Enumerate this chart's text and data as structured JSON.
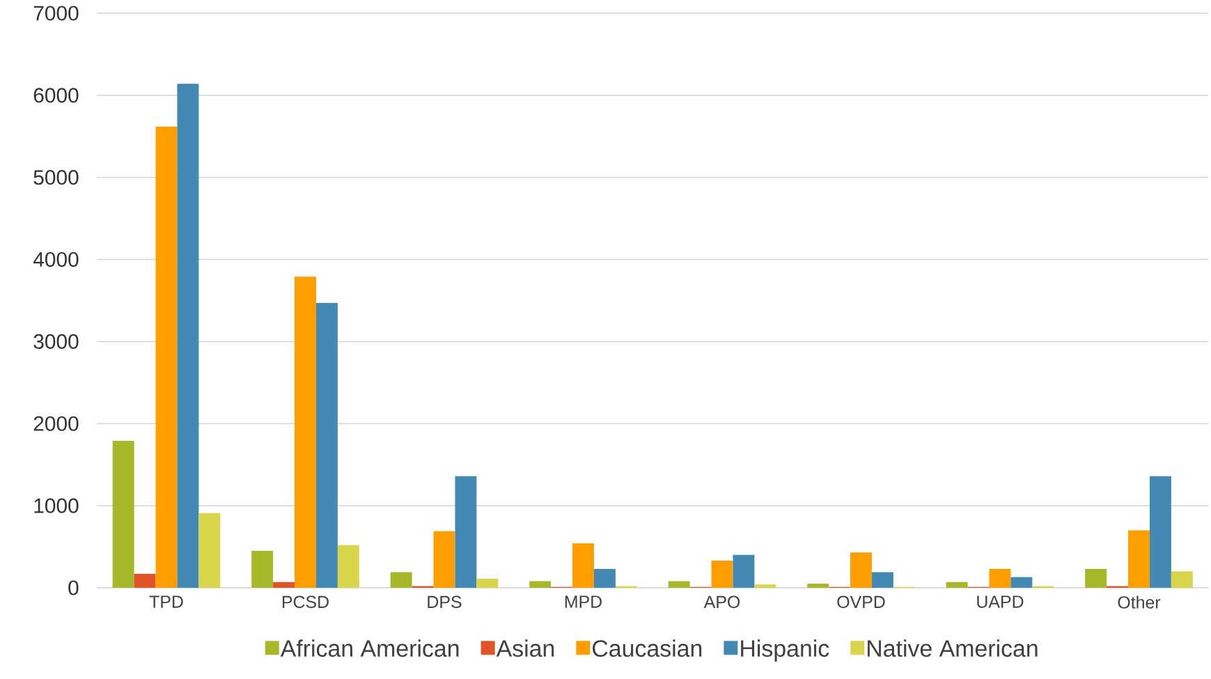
{
  "chart_data": {
    "type": "bar",
    "categories": [
      "TPD",
      "PCSD",
      "DPS",
      "MPD",
      "APO",
      "OVPD",
      "UAPD",
      "Other"
    ],
    "series": [
      {
        "name": "African American",
        "color": "#a6b727",
        "values": [
          1790,
          450,
          190,
          80,
          80,
          50,
          70,
          230
        ]
      },
      {
        "name": "Asian",
        "color": "#e05528",
        "values": [
          170,
          70,
          20,
          10,
          10,
          10,
          10,
          20
        ]
      },
      {
        "name": "Caucasian",
        "color": "#ff9e00",
        "values": [
          5620,
          3790,
          690,
          540,
          330,
          430,
          230,
          700
        ]
      },
      {
        "name": "Hispanic",
        "color": "#4289b3",
        "values": [
          6140,
          3470,
          1360,
          230,
          400,
          190,
          130,
          1360
        ]
      },
      {
        "name": "Native American",
        "color": "#d9d54a",
        "values": [
          910,
          520,
          110,
          20,
          40,
          10,
          20,
          200
        ]
      }
    ],
    "ylim": [
      0,
      7000
    ],
    "yticks": [
      0,
      1000,
      2000,
      3000,
      4000,
      5000,
      6000,
      7000
    ],
    "grid": "y",
    "legend": "bottom"
  }
}
